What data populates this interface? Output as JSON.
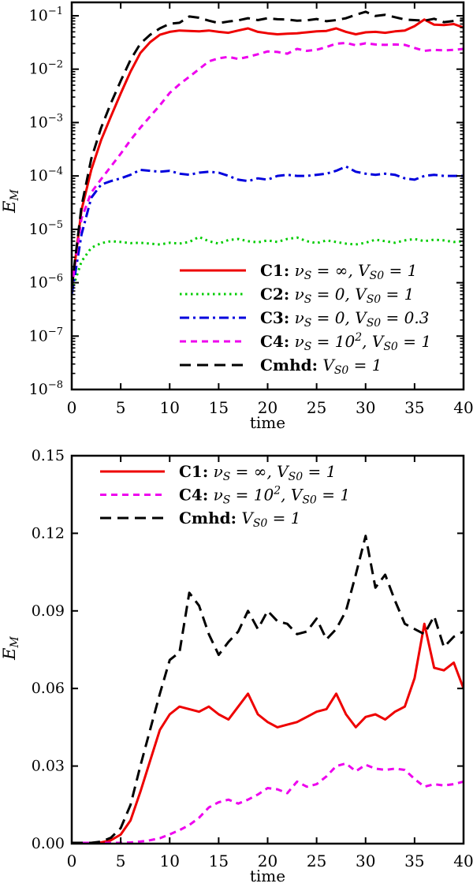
{
  "figure": {
    "background": "#ffffff",
    "xlabel": "time",
    "ylabel": "E_{M}"
  },
  "chart_data": {
    "type": "line",
    "x": [
      0,
      1,
      2,
      3,
      4,
      5,
      6,
      7,
      8,
      9,
      10,
      11,
      12,
      13,
      14,
      15,
      16,
      17,
      18,
      19,
      20,
      21,
      22,
      23,
      24,
      25,
      26,
      27,
      28,
      29,
      30,
      31,
      32,
      33,
      34,
      35,
      36,
      37,
      38,
      39,
      40
    ],
    "xlabel": "time",
    "ylabel": "E_{M}",
    "curves": [
      {
        "id": "C1",
        "color": "#ee0000",
        "style": "solid",
        "legend": "C1: ν_{S} = ∞, V_{S0} = 1",
        "values": [
          8e-07,
          2.3e-05,
          0.00013,
          0.00047,
          0.0013,
          0.0035,
          0.009,
          0.02,
          0.032,
          0.044,
          0.05,
          0.053,
          0.052,
          0.051,
          0.053,
          0.05,
          0.048,
          0.053,
          0.058,
          0.05,
          0.047,
          0.045,
          0.046,
          0.047,
          0.049,
          0.051,
          0.052,
          0.058,
          0.05,
          0.045,
          0.049,
          0.05,
          0.048,
          0.051,
          0.053,
          0.064,
          0.085,
          0.068,
          0.067,
          0.07,
          0.06
        ]
      },
      {
        "id": "C2",
        "color": "#00cc00",
        "style": "dotted",
        "legend": "C2: ν_{S} = 0, V_{S0} = 1",
        "values": [
          7e-07,
          2.5e-06,
          4.5e-06,
          5.5e-06,
          6e-06,
          5.8e-06,
          5.5e-06,
          5.6e-06,
          5.4e-06,
          5.2e-06,
          5.6e-06,
          5.4e-06,
          5.8e-06,
          7.2e-06,
          6e-06,
          5.4e-06,
          6.3e-06,
          6.6e-06,
          6e-06,
          5.7e-06,
          6.2e-06,
          5.8e-06,
          6.6e-06,
          7e-06,
          6e-06,
          5.5e-06,
          6.2e-06,
          5.8e-06,
          5.4e-06,
          5.2e-06,
          5.6e-06,
          6.4e-06,
          6e-06,
          5.6e-06,
          6.2e-06,
          6.6e-06,
          6e-06,
          6.4e-06,
          6.2e-06,
          5.8e-06,
          6e-06
        ]
      },
      {
        "id": "C3",
        "color": "#0000dd",
        "style": "dashdot",
        "legend": "C3: ν_{S} = 0, V_{S0} = 0.3",
        "values": [
          6e-07,
          8e-06,
          3.9e-05,
          6.9e-05,
          8e-05,
          9e-05,
          0.000105,
          0.00013,
          0.000125,
          0.00012,
          0.000125,
          0.00011,
          0.000105,
          0.000115,
          0.00012,
          0.000115,
          0.0001,
          8.5e-05,
          8e-05,
          9e-05,
          8.5e-05,
          0.0001,
          0.000105,
          0.0001,
          0.0001,
          0.000105,
          0.00011,
          0.000125,
          0.00015,
          0.00012,
          0.00011,
          0.000105,
          0.00011,
          0.000105,
          9e-05,
          8.5e-05,
          0.0001,
          0.000105,
          0.0001,
          0.0001,
          0.0001
        ]
      },
      {
        "id": "C4",
        "color": "#ee00ee",
        "style": "dashed",
        "legend": "C4: ν_{S} = 10^{2}, V_{S0} = 1",
        "values": [
          8e-07,
          1.6e-05,
          4.9e-05,
          8.7e-05,
          0.00015,
          0.00026,
          0.00047,
          0.0008,
          0.0013,
          0.0021,
          0.0036,
          0.0052,
          0.0072,
          0.01,
          0.014,
          0.016,
          0.017,
          0.0155,
          0.017,
          0.019,
          0.0215,
          0.021,
          0.0195,
          0.024,
          0.022,
          0.023,
          0.026,
          0.03,
          0.031,
          0.028,
          0.0305,
          0.029,
          0.0285,
          0.029,
          0.0285,
          0.025,
          0.022,
          0.023,
          0.0225,
          0.023,
          0.024
        ]
      },
      {
        "id": "Cmhd",
        "color": "#000000",
        "style": "longdash",
        "legend": "Cmhd: V_{S0} = 1",
        "values": [
          8e-07,
          2.7e-05,
          0.00021,
          0.0008,
          0.0023,
          0.006,
          0.015,
          0.03,
          0.044,
          0.058,
          0.071,
          0.074,
          0.097,
          0.092,
          0.081,
          0.073,
          0.078,
          0.082,
          0.09,
          0.083,
          0.09,
          0.086,
          0.085,
          0.081,
          0.082,
          0.087,
          0.079,
          0.083,
          0.09,
          0.104,
          0.119,
          0.099,
          0.104,
          0.094,
          0.085,
          0.083,
          0.081,
          0.088,
          0.076,
          0.08,
          0.082
        ]
      }
    ],
    "panels": [
      {
        "name": "top",
        "yscale": "log",
        "xlim": [
          0,
          40
        ],
        "ylim": [
          1e-08,
          0.1
        ],
        "xticks": [
          0,
          5,
          10,
          15,
          20,
          25,
          30,
          35,
          40
        ],
        "ytick_exponents": [
          -1,
          -2,
          -3,
          -4,
          -5,
          -6,
          -7,
          -8
        ],
        "xlabel": "time",
        "ylabel": "E_{M}",
        "legend_curves": [
          "C1",
          "C2",
          "C3",
          "C4",
          "Cmhd"
        ],
        "legend_pos": "lower-right",
        "grid": false
      },
      {
        "name": "bottom",
        "yscale": "linear",
        "xlim": [
          0,
          40
        ],
        "ylim": [
          0,
          0.15
        ],
        "xticks": [
          0,
          5,
          10,
          15,
          20,
          25,
          30,
          35,
          40
        ],
        "yticks": [
          0,
          0.03,
          0.06,
          0.09,
          0.12,
          0.15
        ],
        "ytick_labels": [
          "0.00",
          "0.03",
          "0.06",
          "0.09",
          "0.12",
          "0.15"
        ],
        "xlabel": "time",
        "ylabel": "E_{M}",
        "legend_curves": [
          "C1",
          "C4",
          "Cmhd"
        ],
        "legend_pos": "upper-left",
        "grid": false
      }
    ]
  }
}
